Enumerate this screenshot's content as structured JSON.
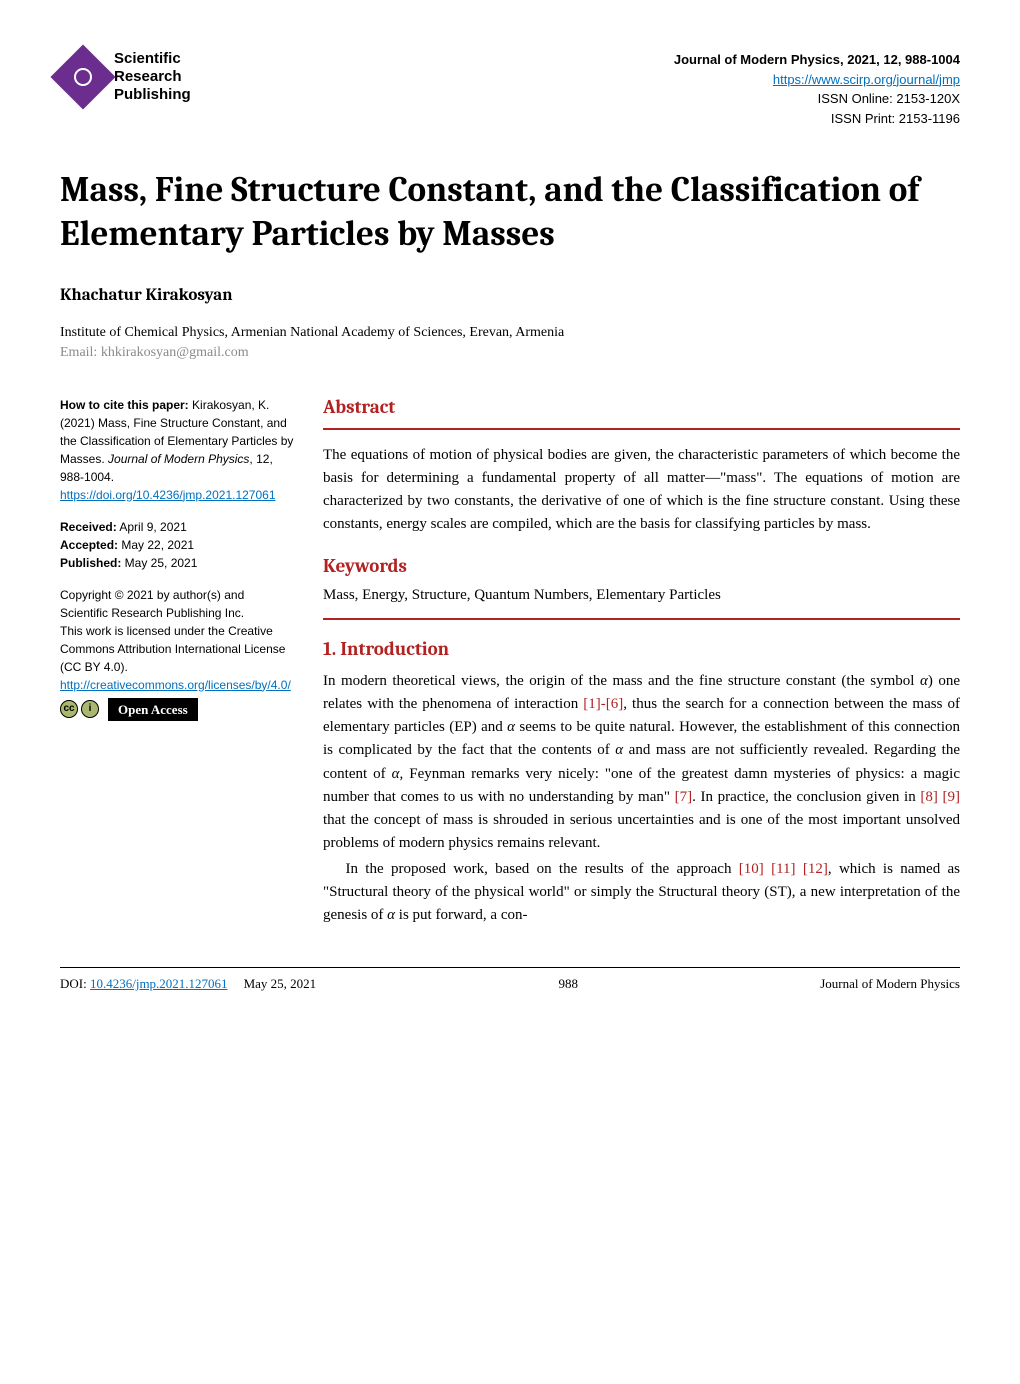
{
  "publisher": {
    "logo_label": "Scientific Research Publishing",
    "logo_line1": "Scientific",
    "logo_line2": "Research",
    "logo_line3": "Publishing",
    "brand_color": "#6b2d8e"
  },
  "journal_meta": {
    "title_line": "Journal of Modern Physics, 2021, 12, 988-1004",
    "url": "https://www.scirp.org/journal/jmp",
    "issn_online": "ISSN Online: 2153-120X",
    "issn_print": "ISSN Print: 2153-1196"
  },
  "article": {
    "title": "Mass, Fine Structure Constant, and the Classification of Elementary Particles by Masses",
    "author": "Khachatur Kirakosyan",
    "affiliation": "Institute of Chemical Physics, Armenian National Academy of Sciences, Erevan, Armenia",
    "email": "Email: khkirakosyan@gmail.com"
  },
  "citation": {
    "howto_label": "How to cite this paper:",
    "text": " Kirakosyan, K. (2021) Mass, Fine Structure Constant, and the Classification of Elementary Particles by Masses. ",
    "journal_italic": "Journal of Modern Physics",
    "vol_pages": ", 12, 988-1004.",
    "doi_url": "https://doi.org/10.4236/jmp.2021.127061"
  },
  "dates": {
    "received_label": "Received:",
    "received_value": " April 9, 2021",
    "accepted_label": "Accepted:",
    "accepted_value": " May 22, 2021",
    "published_label": "Published:",
    "published_value": " May 25, 2021"
  },
  "copyright": {
    "line1": "Copyright © 2021 by author(s) and Scientific Research Publishing Inc.",
    "line2": "This work is licensed under the Creative Commons Attribution International License (CC BY 4.0).",
    "cc_url": "http://creativecommons.org/licenses/by/4.0/",
    "cc_symbol": "cc",
    "by_symbol": "①",
    "open_access_label": "Open Access"
  },
  "sections": {
    "abstract_title": "Abstract",
    "keywords_title": "Keywords",
    "intro_title": "1. Introduction"
  },
  "abstract_text": "The equations of motion of physical bodies are given, the characteristic parameters of which become the basis for determining a fundamental property of all matter—\"mass\". The equations of motion are characterized by two constants, the derivative of one of which is the fine structure constant. Using these constants, energy scales are compiled, which are the basis for classifying particles by mass.",
  "keywords_text": "Mass, Energy, Structure, Quantum Numbers, Elementary Particles",
  "intro": {
    "p1_a": "In modern theoretical views, the origin of the mass and the fine structure constant (the symbol ",
    "p1_b": ") one relates with the phenomena of interaction ",
    "p1_c": ", thus the search for a connection between the mass of elementary particles (EP) and ",
    "p1_d": " seems to be quite natural. However, the establishment of this connection is complicated by the fact that the contents of ",
    "p1_e": " and mass are not sufficiently revealed. Regarding the content of ",
    "p1_f": ", Feynman remarks very nicely: \"one of the greatest damn mysteries of physics: a magic number that comes to us with no understanding by man\" ",
    "p1_g": ". In practice, the conclusion given in ",
    "p1_h": " that the concept of mass is shrouded in serious uncertainties and is one of the most important unsolved problems of modern physics remains relevant.",
    "p2_a": "In the proposed work, based on the results of the approach ",
    "p2_b": ", which is named as \"Structural theory of the physical world\" or simply the Structural theory (ST), a new interpretation of the genesis of ",
    "p2_c": " is put forward, a con-",
    "alpha": "α",
    "cite1": "[1]-[6]",
    "cite7": "[7]",
    "cite8": "[8]",
    "cite9": "[9]",
    "cite10": "[10]",
    "cite11": "[11]",
    "cite12": "[12]"
  },
  "footer": {
    "doi_label": "DOI: ",
    "doi_link": "10.4236/jmp.2021.127061",
    "date": "May 25, 2021",
    "page": "988",
    "journal": "Journal of Modern Physics"
  },
  "colors": {
    "accent_red": "#b22222",
    "link_blue": "#0070c0",
    "text_gray": "#8a8a8a"
  }
}
